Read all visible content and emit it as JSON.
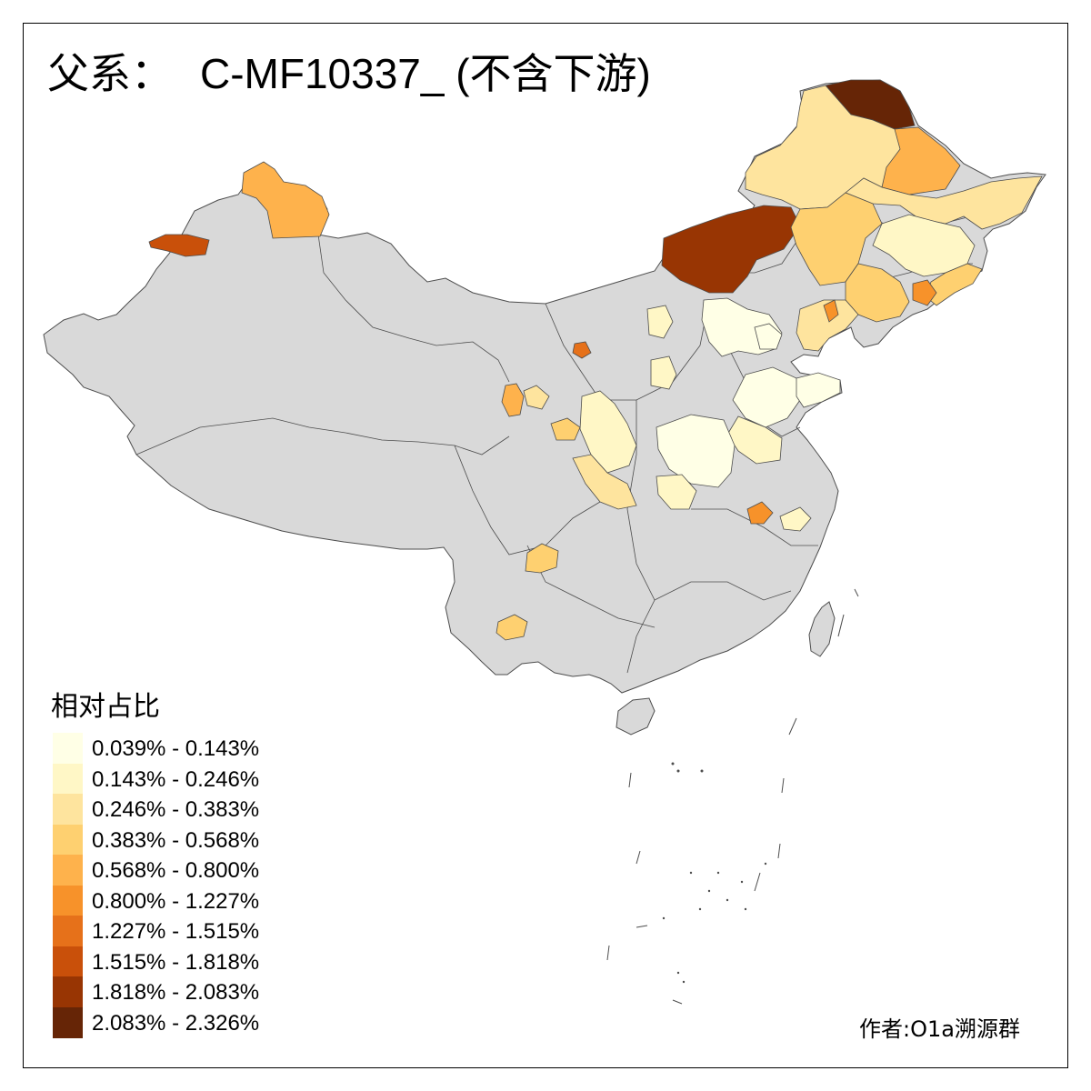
{
  "map": {
    "title_prefix": "父系：",
    "title_code": "C-MF10337_ (不含下游)",
    "credit": "作者:O1a溯源群",
    "legend": {
      "title": "相对占比",
      "bins": [
        {
          "label": "0.039% - 0.143%",
          "color": "#ffffe6"
        },
        {
          "label": "0.143% - 0.246%",
          "color": "#fff7c6"
        },
        {
          "label": "0.246% - 0.383%",
          "color": "#fee49e"
        },
        {
          "label": "0.383% - 0.568%",
          "color": "#fed070"
        },
        {
          "label": "0.568% - 0.800%",
          "color": "#feb24c"
        },
        {
          "label": "0.800% - 1.227%",
          "color": "#f7922a"
        },
        {
          "label": "1.227% - 1.515%",
          "color": "#e6711a"
        },
        {
          "label": "1.515% - 1.818%",
          "color": "#c9500a"
        },
        {
          "label": "1.818% - 2.083%",
          "color": "#983503"
        },
        {
          "label": "2.083% - 2.326%",
          "color": "#662506"
        }
      ]
    },
    "no_data_color": "#d9d9d9",
    "border_color": "#4d4d4d"
  }
}
